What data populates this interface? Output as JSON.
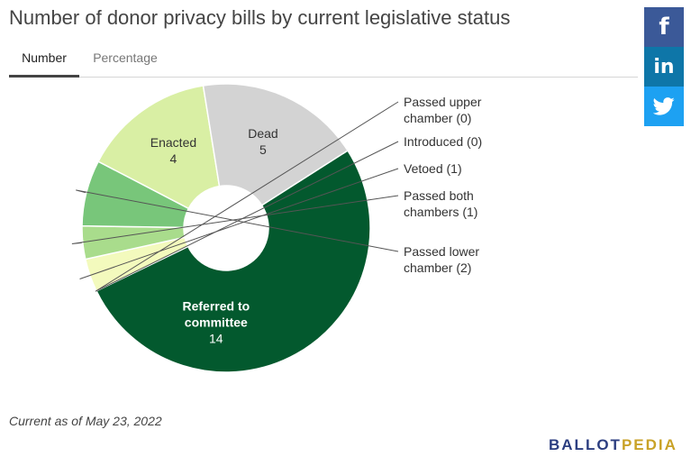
{
  "title": "Number of donor privacy bills by current legislative status",
  "tabs": [
    {
      "label": "Number",
      "active": true
    },
    {
      "label": "Percentage",
      "active": false
    }
  ],
  "social": [
    {
      "name": "facebook",
      "glyph": "f",
      "color": "#3b5998"
    },
    {
      "name": "linkedin",
      "glyph": "in",
      "color": "#0e76a8"
    },
    {
      "name": "twitter",
      "glyph": "twitter-bird-icon",
      "color": "#1da1f2"
    }
  ],
  "chart_data": {
    "type": "pie",
    "donut": true,
    "slices": [
      {
        "label": "Referred to committee",
        "value": 14,
        "color": "#03592e",
        "text_color": "#ffffff",
        "label_lines": [
          "Referred to",
          "committee"
        ]
      },
      {
        "label": "Passed upper chamber",
        "value": 0,
        "color": "#f0f7c4",
        "label_lines": [
          "Passed upper",
          "chamber (0)"
        ]
      },
      {
        "label": "Introduced",
        "value": 0,
        "color": "#f0f7c4",
        "label_lines": [
          "Introduced (0)"
        ]
      },
      {
        "label": "Vetoed",
        "value": 1,
        "color": "#f3fabd",
        "label_lines": [
          "Vetoed (1)"
        ]
      },
      {
        "label": "Passed both chambers",
        "value": 1,
        "color": "#a9dc8c",
        "label_lines": [
          "Passed both",
          "chambers (1)"
        ]
      },
      {
        "label": "Passed lower chamber",
        "value": 2,
        "color": "#78c67a",
        "label_lines": [
          "Passed lower",
          "chamber (2)"
        ]
      },
      {
        "label": "Enacted",
        "value": 4,
        "color": "#d9efa4",
        "text_color": "#333333",
        "label_lines": [
          "Enacted"
        ]
      },
      {
        "label": "Dead",
        "value": 5,
        "color": "#d3d3d3",
        "text_color": "#333333",
        "label_lines": [
          "Dead"
        ]
      }
    ]
  },
  "footnote": "Current as of May 23, 2022",
  "logo": {
    "part1": "BALLOT",
    "part2": "PEDIA"
  }
}
